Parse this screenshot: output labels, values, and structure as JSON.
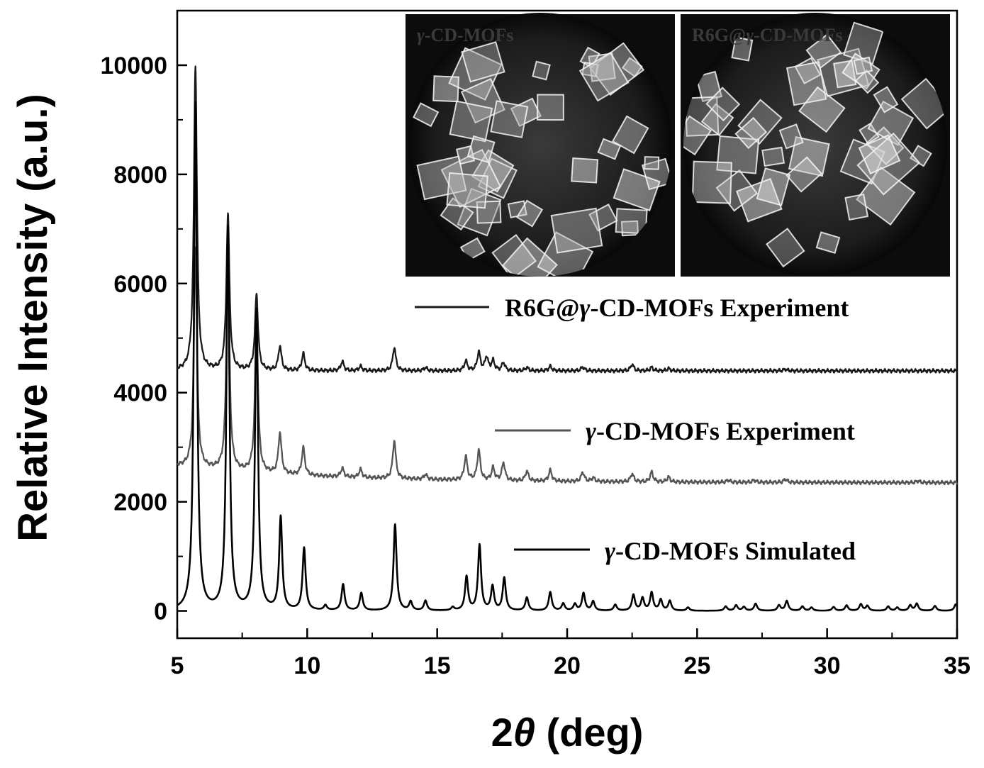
{
  "chart_data": {
    "type": "line",
    "title": "",
    "xlabel": {
      "prefix": "2",
      "symbol": "θ",
      "suffix": " (deg)"
    },
    "ylabel": "Relative Intensity (a.u.)",
    "xlim": [
      5,
      35
    ],
    "ylim": [
      -500,
      11000
    ],
    "x_ticks": [
      5,
      10,
      15,
      20,
      25,
      30,
      35
    ],
    "y_ticks": [
      0,
      2000,
      4000,
      6000,
      8000,
      10000
    ],
    "grid": false,
    "legend_position": "right",
    "series": [
      {
        "name": "R6G@γ-CD-MOFs Experiment",
        "name_parts": [
          "R6G@",
          "γ",
          "-CD-MOFs Experiment"
        ],
        "color": "#1a1a1a",
        "baseline": 4400,
        "peaks": [
          [
            5.7,
            5600
          ],
          [
            6.95,
            2860
          ],
          [
            8.05,
            1400
          ],
          [
            8.95,
            450
          ],
          [
            9.85,
            310
          ],
          [
            11.35,
            170
          ],
          [
            12.05,
            80
          ],
          [
            13.35,
            430
          ],
          [
            14.55,
            60
          ],
          [
            16.1,
            180
          ],
          [
            16.6,
            340
          ],
          [
            16.9,
            250
          ],
          [
            17.15,
            180
          ],
          [
            17.55,
            150
          ],
          [
            18.45,
            60
          ],
          [
            19.35,
            80
          ],
          [
            20.6,
            70
          ],
          [
            22.5,
            120
          ],
          [
            23.25,
            60
          ],
          [
            23.9,
            40
          ],
          [
            28.4,
            30
          ]
        ]
      },
      {
        "name": "γ-CD-MOFs Experiment",
        "name_parts": [
          "",
          "γ",
          "-CD-MOFs Experiment"
        ],
        "color": "#555555",
        "baseline": 2350,
        "peaks": [
          [
            5.7,
            4050
          ],
          [
            6.95,
            3950
          ],
          [
            8.05,
            2800
          ],
          [
            8.95,
            750
          ],
          [
            9.85,
            500
          ],
          [
            11.35,
            160
          ],
          [
            12.05,
            150
          ],
          [
            13.35,
            700
          ],
          [
            14.55,
            90
          ],
          [
            16.1,
            430
          ],
          [
            16.6,
            550
          ],
          [
            17.15,
            230
          ],
          [
            17.55,
            330
          ],
          [
            18.45,
            180
          ],
          [
            19.35,
            200
          ],
          [
            20.6,
            170
          ],
          [
            21.0,
            70
          ],
          [
            22.5,
            150
          ],
          [
            23.25,
            180
          ],
          [
            23.9,
            90
          ],
          [
            26.2,
            40
          ],
          [
            27.2,
            40
          ],
          [
            28.4,
            60
          ],
          [
            33.5,
            30
          ]
        ]
      },
      {
        "name": "γ-CD-MOFs Simulated",
        "name_parts": [
          "",
          "γ",
          "-CD-MOFs Simulated"
        ],
        "color": "#000000",
        "baseline": 0,
        "peaks": [
          [
            5.7,
            9300
          ],
          [
            6.95,
            7000
          ],
          [
            8.05,
            5500
          ],
          [
            8.98,
            1700
          ],
          [
            9.88,
            1140
          ],
          [
            10.7,
            90
          ],
          [
            11.38,
            480
          ],
          [
            12.08,
            320
          ],
          [
            13.38,
            1580
          ],
          [
            13.98,
            160
          ],
          [
            14.55,
            180
          ],
          [
            15.6,
            60
          ],
          [
            16.13,
            620
          ],
          [
            16.63,
            1200
          ],
          [
            17.13,
            440
          ],
          [
            17.58,
            600
          ],
          [
            18.45,
            240
          ],
          [
            19.35,
            340
          ],
          [
            19.85,
            130
          ],
          [
            20.3,
            120
          ],
          [
            20.63,
            320
          ],
          [
            21.0,
            170
          ],
          [
            21.85,
            110
          ],
          [
            22.55,
            290
          ],
          [
            22.9,
            230
          ],
          [
            23.25,
            330
          ],
          [
            23.6,
            200
          ],
          [
            23.95,
            180
          ],
          [
            24.65,
            60
          ],
          [
            26.1,
            80
          ],
          [
            26.5,
            100
          ],
          [
            26.8,
            70
          ],
          [
            27.25,
            130
          ],
          [
            28.15,
            100
          ],
          [
            28.45,
            180
          ],
          [
            29.05,
            80
          ],
          [
            29.4,
            60
          ],
          [
            30.25,
            70
          ],
          [
            30.75,
            100
          ],
          [
            31.3,
            120
          ],
          [
            31.55,
            90
          ],
          [
            32.35,
            80
          ],
          [
            32.7,
            60
          ],
          [
            33.2,
            100
          ],
          [
            33.45,
            130
          ],
          [
            34.15,
            90
          ],
          [
            34.95,
            120
          ]
        ]
      }
    ],
    "inset_photos": [
      {
        "label_parts": [
          "",
          "γ",
          "-CD-MOFs"
        ]
      },
      {
        "label_parts": [
          "R6G@",
          "γ",
          "-CD-MOFs"
        ]
      }
    ]
  }
}
